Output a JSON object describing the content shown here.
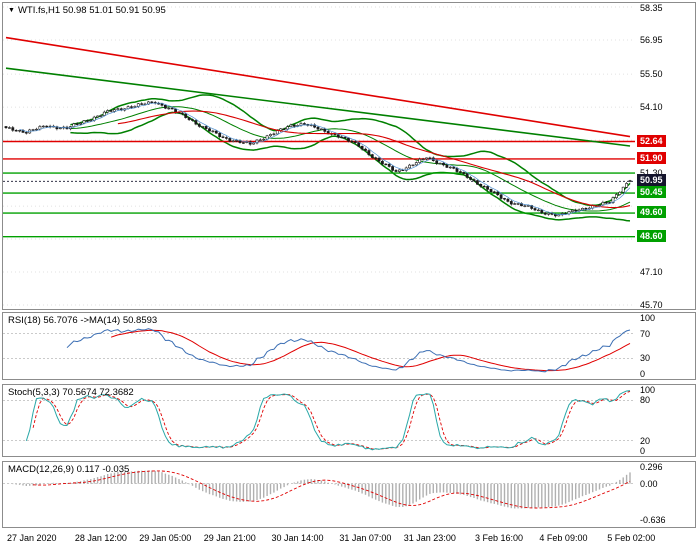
{
  "window": {
    "marker": "▼"
  },
  "main_chart": {
    "symbol_line": "WTI.fs,H1  50.98 51.01 50.91 50.95",
    "symbol": "WTI.fs",
    "timeframe": "H1",
    "ohlc": {
      "open": 50.98,
      "high": 51.01,
      "low": 50.91,
      "close": 50.95
    },
    "y_range": [
      45.7,
      58.35
    ],
    "grid_ticks": [
      58.35,
      56.95,
      55.5,
      54.1,
      52.7,
      51.3,
      49.9,
      48.5,
      47.1,
      45.7
    ],
    "axis_ticks": [
      "58.35",
      "56.95",
      "55.50",
      "54.10",
      "51.30",
      "47.10",
      "45.70"
    ],
    "price_levels": [
      {
        "price": 52.64,
        "label": "52.64",
        "color": "#e00000",
        "kind": "resistance-line"
      },
      {
        "price": 51.9,
        "label": "51.90",
        "color": "#e00000",
        "kind": "resistance-line"
      },
      {
        "price": 50.95,
        "label": "50.95",
        "color": "#15152d",
        "kind": "current-price"
      },
      {
        "price": 51.3,
        "label": "51.30",
        "color": "#00a000",
        "kind": "support-line",
        "label_style": "plain"
      },
      {
        "price": 50.45,
        "label": "50.45",
        "color": "#00a000",
        "kind": "support-line"
      },
      {
        "price": 49.6,
        "label": "49.60",
        "color": "#00a000",
        "kind": "support-line"
      },
      {
        "price": 48.6,
        "label": "48.60",
        "color": "#00a000",
        "kind": "support-line"
      }
    ],
    "trendlines": [
      {
        "name": "descending-resistance-trendline",
        "color": "#e00000",
        "from_price": 57.05,
        "to_price": 52.85
      },
      {
        "name": "descending-channel-trendline",
        "color": "#008000",
        "from_price": 55.75,
        "to_price": 52.45
      }
    ]
  },
  "chart_data": [
    {
      "type": "candlestick",
      "title": "WTI.fs H1",
      "y_range": [
        45.7,
        58.35
      ],
      "candles_count": 185,
      "last_candle": {
        "open": 50.98,
        "high": 51.01,
        "low": 50.91,
        "close": 50.95
      },
      "close_keyframes": [
        [
          0,
          53.2
        ],
        [
          6,
          53.05
        ],
        [
          12,
          53.3
        ],
        [
          18,
          53.2
        ],
        [
          24,
          53.55
        ],
        [
          30,
          53.9
        ],
        [
          36,
          54.1
        ],
        [
          44,
          54.32
        ],
        [
          48,
          54.05
        ],
        [
          54,
          53.6
        ],
        [
          58,
          53.25
        ],
        [
          64,
          52.8
        ],
        [
          72,
          52.52
        ],
        [
          78,
          52.95
        ],
        [
          84,
          53.3
        ],
        [
          88,
          53.42
        ],
        [
          94,
          53.05
        ],
        [
          98,
          52.9
        ],
        [
          104,
          52.45
        ],
        [
          110,
          51.8
        ],
        [
          115,
          51.35
        ],
        [
          118,
          51.55
        ],
        [
          124,
          51.95
        ],
        [
          130,
          51.6
        ],
        [
          136,
          51.15
        ],
        [
          142,
          50.6
        ],
        [
          148,
          50.1
        ],
        [
          154,
          49.85
        ],
        [
          158,
          49.65
        ],
        [
          163,
          49.48
        ],
        [
          168,
          49.75
        ],
        [
          173,
          49.85
        ],
        [
          178,
          50.1
        ],
        [
          181,
          50.55
        ],
        [
          184,
          50.95
        ]
      ],
      "overlays": [
        {
          "name": "bollinger-bands",
          "period": 20,
          "deviation": 2,
          "color": "#008000"
        },
        {
          "name": "slow-ma",
          "period": 34,
          "color": "#d80000"
        },
        {
          "name": "fast-ma",
          "period": 5,
          "color": "#4f8fd0"
        }
      ]
    },
    {
      "type": "line",
      "name": "RSI",
      "label": "RSI(18) 56.7076 ->MA(14) 50.8593",
      "period": 18,
      "value": 56.7076,
      "ma_period": 14,
      "ma_value": 50.8593,
      "range": [
        0,
        100
      ],
      "guides": [
        70,
        30
      ],
      "axis_ticks": [
        "100",
        "70",
        "30",
        "0"
      ],
      "colors": {
        "main": "#3c6fb4",
        "signal": "#e00000"
      }
    },
    {
      "type": "line",
      "name": "Stochastic",
      "label": "Stoch(5,3,3) 70.5674 72.3682",
      "k_value": 70.5674,
      "d_value": 72.3682,
      "range": [
        0,
        100
      ],
      "guides": [
        80,
        20
      ],
      "axis_ticks": [
        "100",
        "80",
        "20",
        "0"
      ],
      "colors": {
        "main": "#2aa8a8",
        "signal": "#e00000"
      }
    },
    {
      "type": "histogram+line",
      "name": "MACD",
      "label": "MACD(12,26,9) 0.117 -0.035",
      "main_value": 0.117,
      "signal_value": -0.035,
      "range": [
        -0.72,
        0.34
      ],
      "axis_ticks": [
        "0.296",
        "0.00",
        "-0.636"
      ],
      "colors": {
        "histogram": "#b0b0b0",
        "signal": "#e00000"
      }
    }
  ],
  "time_axis": {
    "labels": [
      "27 Jan 2020",
      "28 Jan 12:00",
      "29 Jan 05:00",
      "29 Jan 21:00",
      "30 Jan 14:00",
      "31 Jan 07:00",
      "31 Jan 23:00",
      "3 Feb 16:00",
      "4 Feb 09:00",
      "5 Feb 02:00"
    ],
    "indices": [
      0,
      20,
      39,
      58,
      78,
      98,
      117,
      138,
      157,
      177
    ]
  }
}
